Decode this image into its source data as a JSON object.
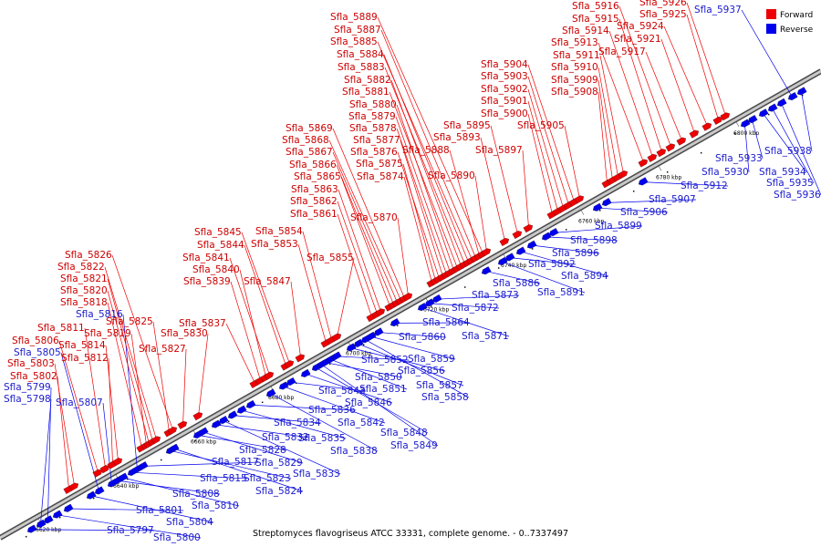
{
  "caption": "Streptomyces flavogriseus ATCC 33331, complete genome. - 0..7337497",
  "legend": [
    {
      "label": "Forward",
      "color": "#ee0000"
    },
    {
      "label": "Reverse",
      "color": "#0000ee"
    }
  ],
  "colors": {
    "forward": "#ee0000",
    "reverse": "#0000ee",
    "forward_label": "#cc0000",
    "reverse_label": "#1a1acc",
    "axis": "#8a8a8a"
  },
  "ticks": [
    "6620 kbp",
    "6640 kbp",
    "6660 kbp",
    "6680 kbp",
    "6700 kbp",
    "6720 kbp",
    "6740 kbp",
    "6760 kbp",
    "6780 kbp",
    "6800 kbp"
  ],
  "genes": [
    {
      "name": "Sfla_5797",
      "strand": "reverse"
    },
    {
      "name": "Sfla_5798",
      "strand": "reverse"
    },
    {
      "name": "Sfla_5799",
      "strand": "reverse"
    },
    {
      "name": "Sfla_5800",
      "strand": "reverse"
    },
    {
      "name": "Sfla_5801",
      "strand": "reverse"
    },
    {
      "name": "Sfla_5802",
      "strand": "forward"
    },
    {
      "name": "Sfla_5803",
      "strand": "forward"
    },
    {
      "name": "Sfla_5804",
      "strand": "reverse"
    },
    {
      "name": "Sfla_5805",
      "strand": "reverse"
    },
    {
      "name": "Sfla_5806",
      "strand": "forward"
    },
    {
      "name": "Sfla_5807",
      "strand": "reverse"
    },
    {
      "name": "Sfla_5808",
      "strand": "reverse"
    },
    {
      "name": "Sfla_5810",
      "strand": "reverse"
    },
    {
      "name": "Sfla_5811",
      "strand": "forward"
    },
    {
      "name": "Sfla_5812",
      "strand": "forward"
    },
    {
      "name": "Sfla_5814",
      "strand": "forward"
    },
    {
      "name": "Sfla_5815",
      "strand": "reverse"
    },
    {
      "name": "Sfla_5816",
      "strand": "reverse"
    },
    {
      "name": "Sfla_5817",
      "strand": "reverse"
    },
    {
      "name": "Sfla_5818",
      "strand": "forward"
    },
    {
      "name": "Sfla_5819",
      "strand": "forward"
    },
    {
      "name": "Sfla_5820",
      "strand": "forward"
    },
    {
      "name": "Sfla_5821",
      "strand": "forward"
    },
    {
      "name": "Sfla_5822",
      "strand": "forward"
    },
    {
      "name": "Sfla_5823",
      "strand": "reverse"
    },
    {
      "name": "Sfla_5824",
      "strand": "reverse"
    },
    {
      "name": "Sfla_5825",
      "strand": "forward"
    },
    {
      "name": "Sfla_5826",
      "strand": "forward"
    },
    {
      "name": "Sfla_5827",
      "strand": "forward"
    },
    {
      "name": "Sfla_5828",
      "strand": "reverse"
    },
    {
      "name": "Sfla_5829",
      "strand": "reverse"
    },
    {
      "name": "Sfla_5830",
      "strand": "forward"
    },
    {
      "name": "Sfla_5832",
      "strand": "reverse"
    },
    {
      "name": "Sfla_5833",
      "strand": "reverse"
    },
    {
      "name": "Sfla_5834",
      "strand": "reverse"
    },
    {
      "name": "Sfla_5835",
      "strand": "reverse"
    },
    {
      "name": "Sfla_5836",
      "strand": "reverse"
    },
    {
      "name": "Sfla_5837",
      "strand": "forward"
    },
    {
      "name": "Sfla_5838",
      "strand": "reverse"
    },
    {
      "name": "Sfla_5839",
      "strand": "forward"
    },
    {
      "name": "Sfla_5840",
      "strand": "forward"
    },
    {
      "name": "Sfla_5841",
      "strand": "forward"
    },
    {
      "name": "Sfla_5842",
      "strand": "reverse"
    },
    {
      "name": "Sfla_5843",
      "strand": "reverse"
    },
    {
      "name": "Sfla_5844",
      "strand": "forward"
    },
    {
      "name": "Sfla_5845",
      "strand": "forward"
    },
    {
      "name": "Sfla_5846",
      "strand": "reverse"
    },
    {
      "name": "Sfla_5847",
      "strand": "forward"
    },
    {
      "name": "Sfla_5848",
      "strand": "reverse"
    },
    {
      "name": "Sfla_5849",
      "strand": "reverse"
    },
    {
      "name": "Sfla_5850",
      "strand": "reverse"
    },
    {
      "name": "Sfla_5851",
      "strand": "reverse"
    },
    {
      "name": "Sfla_5852",
      "strand": "reverse"
    },
    {
      "name": "Sfla_5853",
      "strand": "forward"
    },
    {
      "name": "Sfla_5854",
      "strand": "forward"
    },
    {
      "name": "Sfla_5855",
      "strand": "forward"
    },
    {
      "name": "Sfla_5856",
      "strand": "reverse"
    },
    {
      "name": "Sfla_5857",
      "strand": "reverse"
    },
    {
      "name": "Sfla_5858",
      "strand": "reverse"
    },
    {
      "name": "Sfla_5859",
      "strand": "reverse"
    },
    {
      "name": "Sfla_5860",
      "strand": "reverse"
    },
    {
      "name": "Sfla_5861",
      "strand": "forward"
    },
    {
      "name": "Sfla_5862",
      "strand": "forward"
    },
    {
      "name": "Sfla_5863",
      "strand": "forward"
    },
    {
      "name": "Sfla_5864",
      "strand": "reverse"
    },
    {
      "name": "Sfla_5865",
      "strand": "forward"
    },
    {
      "name": "Sfla_5866",
      "strand": "forward"
    },
    {
      "name": "Sfla_5867",
      "strand": "forward"
    },
    {
      "name": "Sfla_5868",
      "strand": "forward"
    },
    {
      "name": "Sfla_5869",
      "strand": "forward"
    },
    {
      "name": "Sfla_5870",
      "strand": "forward"
    },
    {
      "name": "Sfla_5871",
      "strand": "reverse"
    },
    {
      "name": "Sfla_5872",
      "strand": "reverse"
    },
    {
      "name": "Sfla_5873",
      "strand": "reverse"
    },
    {
      "name": "Sfla_5874",
      "strand": "forward"
    },
    {
      "name": "Sfla_5875",
      "strand": "forward"
    },
    {
      "name": "Sfla_5876",
      "strand": "forward"
    },
    {
      "name": "Sfla_5877",
      "strand": "forward"
    },
    {
      "name": "Sfla_5878",
      "strand": "forward"
    },
    {
      "name": "Sfla_5879",
      "strand": "forward"
    },
    {
      "name": "Sfla_5880",
      "strand": "forward"
    },
    {
      "name": "Sfla_5881",
      "strand": "forward"
    },
    {
      "name": "Sfla_5882",
      "strand": "forward"
    },
    {
      "name": "Sfla_5883",
      "strand": "forward"
    },
    {
      "name": "Sfla_5884",
      "strand": "forward"
    },
    {
      "name": "Sfla_5885",
      "strand": "forward"
    },
    {
      "name": "Sfla_5886",
      "strand": "reverse"
    },
    {
      "name": "Sfla_5887",
      "strand": "forward"
    },
    {
      "name": "Sfla_5888",
      "strand": "forward"
    },
    {
      "name": "Sfla_5889",
      "strand": "forward"
    },
    {
      "name": "Sfla_5890",
      "strand": "forward"
    },
    {
      "name": "Sfla_5891",
      "strand": "reverse"
    },
    {
      "name": "Sfla_5892",
      "strand": "reverse"
    },
    {
      "name": "Sfla_5893",
      "strand": "forward"
    },
    {
      "name": "Sfla_5894",
      "strand": "reverse"
    },
    {
      "name": "Sfla_5895",
      "strand": "forward"
    },
    {
      "name": "Sfla_5896",
      "strand": "reverse"
    },
    {
      "name": "Sfla_5897",
      "strand": "forward"
    },
    {
      "name": "Sfla_5898",
      "strand": "reverse"
    },
    {
      "name": "Sfla_5899",
      "strand": "reverse"
    },
    {
      "name": "Sfla_5900",
      "strand": "forward"
    },
    {
      "name": "Sfla_5901",
      "strand": "forward"
    },
    {
      "name": "Sfla_5902",
      "strand": "forward"
    },
    {
      "name": "Sfla_5903",
      "strand": "forward"
    },
    {
      "name": "Sfla_5904",
      "strand": "forward"
    },
    {
      "name": "Sfla_5905",
      "strand": "forward"
    },
    {
      "name": "Sfla_5906",
      "strand": "reverse"
    },
    {
      "name": "Sfla_5907",
      "strand": "reverse"
    },
    {
      "name": "Sfla_5908",
      "strand": "forward"
    },
    {
      "name": "Sfla_5909",
      "strand": "forward"
    },
    {
      "name": "Sfla_5910",
      "strand": "forward"
    },
    {
      "name": "Sfla_5911",
      "strand": "forward"
    },
    {
      "name": "Sfla_5912",
      "strand": "reverse"
    },
    {
      "name": "Sfla_5913",
      "strand": "forward"
    },
    {
      "name": "Sfla_5914",
      "strand": "forward"
    },
    {
      "name": "Sfla_5915",
      "strand": "forward"
    },
    {
      "name": "Sfla_5916",
      "strand": "forward"
    },
    {
      "name": "Sfla_5917",
      "strand": "forward"
    },
    {
      "name": "Sfla_5921",
      "strand": "forward"
    },
    {
      "name": "Sfla_5924",
      "strand": "forward"
    },
    {
      "name": "Sfla_5925",
      "strand": "forward"
    },
    {
      "name": "Sfla_5926",
      "strand": "forward"
    },
    {
      "name": "Sfla_5930",
      "strand": "reverse"
    },
    {
      "name": "Sfla_5933",
      "strand": "reverse"
    },
    {
      "name": "Sfla_5934",
      "strand": "reverse"
    },
    {
      "name": "Sfla_5935",
      "strand": "reverse"
    },
    {
      "name": "Sfla_5936",
      "strand": "reverse"
    },
    {
      "name": "Sfla_5937",
      "strand": "reverse"
    },
    {
      "name": "Sfla_5938",
      "strand": "reverse"
    }
  ]
}
